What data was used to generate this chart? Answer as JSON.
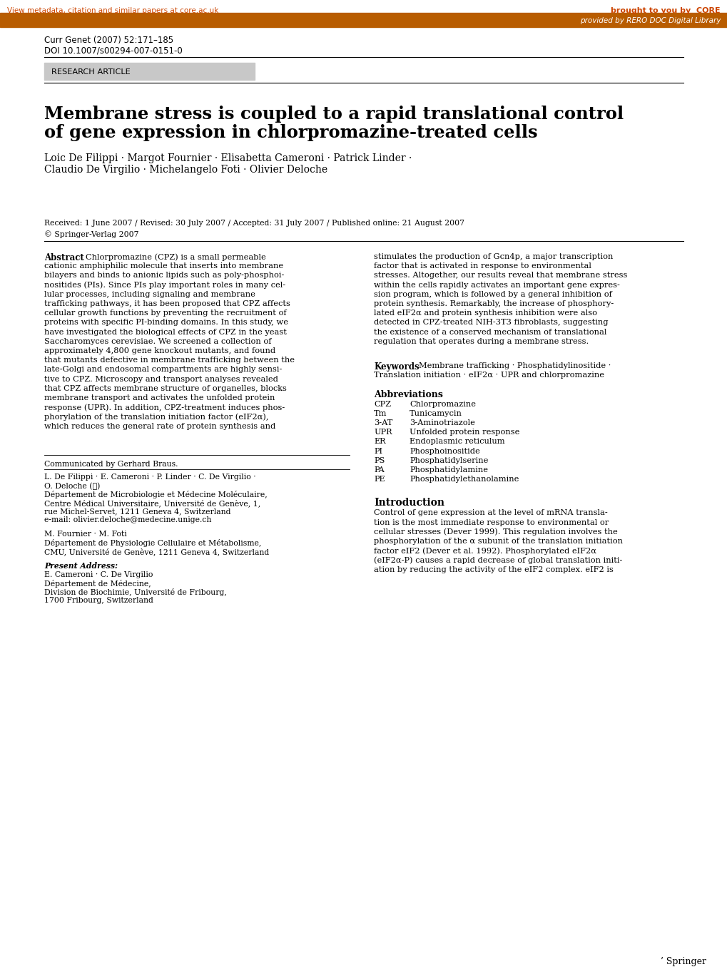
{
  "page_bg": "#ffffff",
  "orange_bar_color": "#B85C00",
  "header_link_text": "View metadata, citation and similar papers at core.ac.uk",
  "header_link_color": "#CC4400",
  "core_text": "brought to you by  CORE",
  "core_text_color": "#CC4400",
  "provided_text": "provided by RERO DOC Digital Library",
  "provided_text_color": "#ffffff",
  "journal_ref": "Curr Genet (2007) 52:171–185",
  "doi_text": "DOI 10.1007/s00294-007-0151-0",
  "research_article_text": "RESEARCH ARTICLE",
  "research_article_bg": "#C8C8C8",
  "main_title_line1": "Membrane stress is coupled to a rapid translational control",
  "main_title_line2": "of gene expression in chlorpromazine-treated cells",
  "authors_line1": "Loic De Filippi · Margot Fournier · Elisabetta Cameroni · Patrick Linder ·",
  "authors_line2": "Claudio De Virgilio · Michelangelo Foti · Olivier Deloche",
  "received_text": "Received: 1 June 2007 / Revised: 30 July 2007 / Accepted: 31 July 2007 / Published online: 21 August 2007",
  "copyright_text": "© Springer-Verlag 2007",
  "abbrev_items": [
    [
      "CPZ",
      "Chlorpromazine"
    ],
    [
      "Tm",
      "Tunicamycin"
    ],
    [
      "3-AT",
      "3-Aminotriazole"
    ],
    [
      "UPR",
      "Unfolded protein response"
    ],
    [
      "ER",
      "Endoplasmic reticulum"
    ],
    [
      "PI",
      "Phosphoinositide"
    ],
    [
      "PS",
      "Phosphatidylserine"
    ],
    [
      "PA",
      "Phosphatidylamine"
    ],
    [
      "PE",
      "Phosphatidylethanolamine"
    ]
  ],
  "communicated_text": "Communicated by Gerhard Braus.",
  "abstract_left_lines": [
    "Chlorpromazine (CPZ) is a small permeable",
    "cationic amphiphilic molecule that inserts into membrane",
    "bilayers and binds to anionic lipids such as poly-phosphoi-",
    "nositides (PIs). Since PIs play important roles in many cel-",
    "lular processes, including signaling and membrane",
    "trafficking pathways, it has been proposed that CPZ affects",
    "cellular growth functions by preventing the recruitment of",
    "proteins with specific PI-binding domains. In this study, we",
    "have investigated the biological effects of CPZ in the yeast",
    "Saccharomyces cerevisiae. We screened a collection of",
    "approximately 4,800 gene knockout mutants, and found",
    "that mutants defective in membrane trafficking between the",
    "late-Golgi and endosomal compartments are highly sensi-",
    "tive to CPZ. Microscopy and transport analyses revealed",
    "that CPZ affects membrane structure of organelles, blocks",
    "membrane transport and activates the unfolded protein",
    "response (UPR). In addition, CPZ-treatment induces phos-",
    "phorylation of the translation initiation factor (eIF2α),",
    "which reduces the general rate of protein synthesis and"
  ],
  "abstract_right_lines": [
    "stimulates the production of Gcn4p, a major transcription",
    "factor that is activated in response to environmental",
    "stresses. Altogether, our results reveal that membrane stress",
    "within the cells rapidly activates an important gene expres-",
    "sion program, which is followed by a general inhibition of",
    "protein synthesis. Remarkably, the increase of phosphory-",
    "lated eIF2α and protein synthesis inhibition were also",
    "detected in CPZ-treated NIH-3T3 fibroblasts, suggesting",
    "the existence of a conserved mechanism of translational",
    "regulation that operates during a membrane stress."
  ],
  "keywords_line1": "Membrane trafficking · Phosphatidylinositide ·",
  "keywords_line2": "Translation initiation · eIF2α · UPR and chlorpromazine",
  "affil1_lines": [
    "L. De Filippi · E. Cameroni · P. Linder · C. De Virgilio ·",
    "O. Deloche (✉)",
    "Département de Microbiologie et Médecine Moléculaire,",
    "Centre Médical Universitaire, Université de Genève, 1,",
    "rue Michel-Servet, 1211 Geneva 4, Switzerland",
    "e-mail: olivier.deloche@medecine.unige.ch"
  ],
  "affil2_lines": [
    "M. Fournier · M. Foti",
    "Département de Physiologie Cellulaire et Métabolisme,",
    "CMU, Université de Genève, 1211 Geneva 4, Switzerland"
  ],
  "present_lines": [
    "E. Cameroni · C. De Virgilio",
    "Département de Médecine,",
    "Division de Biochimie, Université de Fribourg,",
    "1700 Fribourg, Switzerland"
  ],
  "intro_lines": [
    "Control of gene expression at the level of mRNA transla-",
    "tion is the most immediate response to environmental or",
    "cellular stresses (Dever 1999). This regulation involves the",
    "phosphorylation of the α subunit of the translation initiation",
    "factor eIF2 (Dever et al. 1992). Phosphorylated eIF2α",
    "(eIF2α-P) causes a rapid decrease of global translation initi-",
    "ation by reducing the activity of the eIF2 complex. eIF2 is"
  ]
}
